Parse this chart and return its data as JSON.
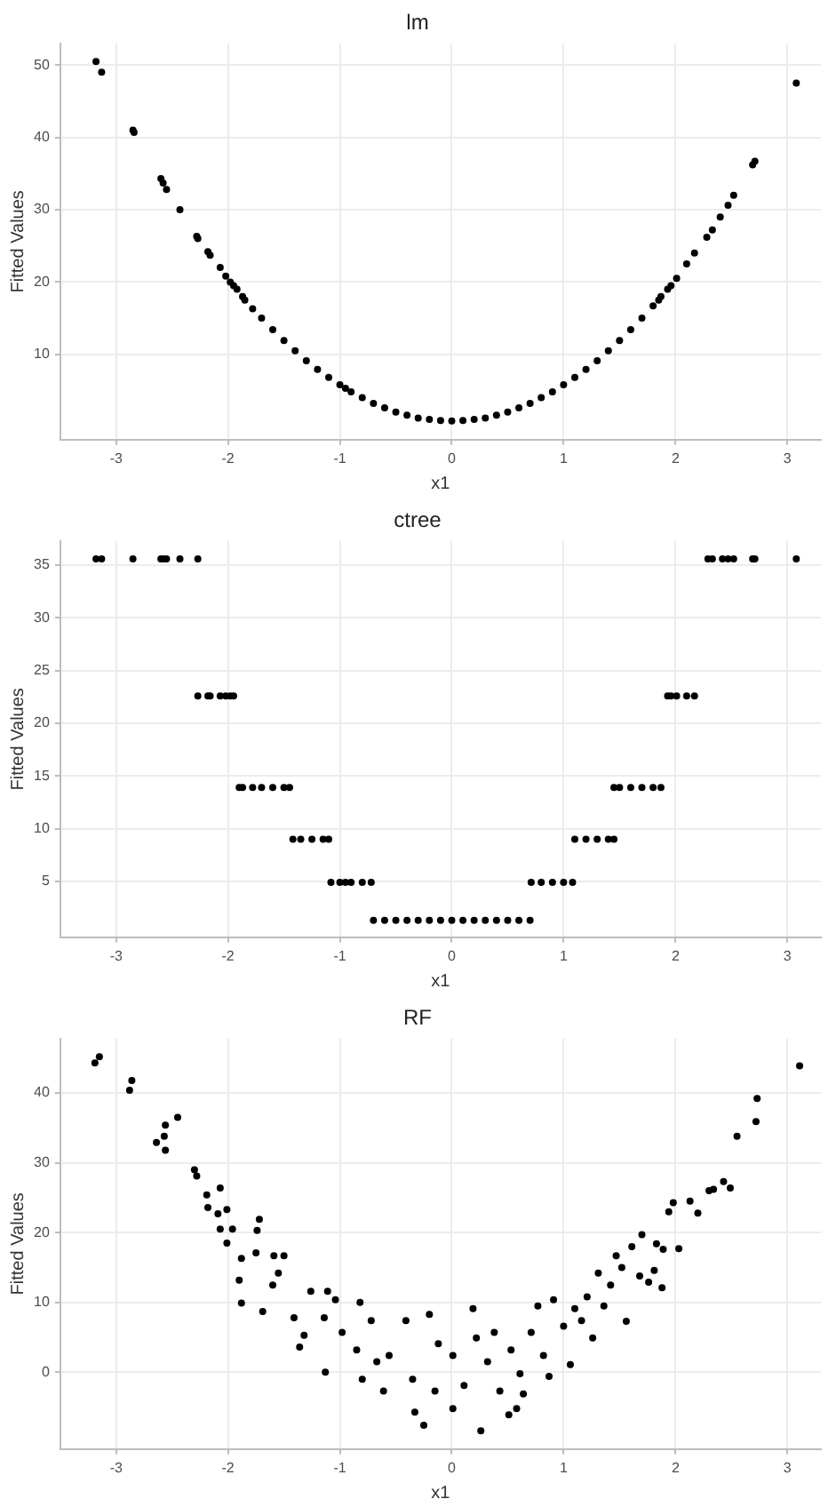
{
  "chart_data": [
    {
      "type": "scatter",
      "title": "lm",
      "xlabel": "x1",
      "ylabel": "Fitted Values",
      "xlim": [
        -3.5,
        3.3
      ],
      "ylim": [
        -1.8,
        53
      ],
      "xticks": [
        -3,
        -2,
        -1,
        0,
        1,
        2,
        3
      ],
      "yticks": [
        10,
        20,
        30,
        40,
        50
      ],
      "grid": true,
      "legend": false,
      "marker": "circle",
      "series": [
        {
          "color": "#000000",
          "x": [
            -3.18,
            -3.13,
            -2.85,
            -2.84,
            -2.6,
            -2.58,
            -2.55,
            -2.43,
            -2.28,
            -2.27,
            -2.18,
            -2.16,
            -2.07,
            -2.02,
            -1.98,
            -1.95,
            -1.92,
            -1.87,
            -1.85,
            -1.78,
            -1.7,
            -1.6,
            -1.5,
            -1.4,
            -1.3,
            -1.2,
            -1.1,
            -1.0,
            -0.95,
            -0.9,
            -0.8,
            -0.7,
            -0.6,
            -0.5,
            -0.4,
            -0.3,
            -0.2,
            -0.1,
            0,
            0.1,
            0.2,
            0.3,
            0.4,
            0.5,
            0.6,
            0.7,
            0.8,
            0.9,
            1.0,
            1.1,
            1.2,
            1.3,
            1.4,
            1.5,
            1.6,
            1.7,
            1.8,
            1.85,
            1.87,
            1.93,
            1.96,
            2.01,
            2.1,
            2.17,
            2.28,
            2.33,
            2.4,
            2.47,
            2.52,
            2.69,
            2.71,
            3.08
          ],
          "values": [
            50.5,
            49,
            41,
            40.7,
            34.3,
            33.7,
            32.8,
            30,
            26.3,
            26,
            24.2,
            23.7,
            22,
            20.8,
            20,
            19.5,
            19,
            18,
            17.5,
            16.3,
            15,
            13.4,
            11.9,
            10.5,
            9.1,
            7.9,
            6.8,
            5.8,
            5.3,
            4.8,
            4.0,
            3.2,
            2.6,
            2.0,
            1.6,
            1.2,
            1.0,
            0.85,
            0.8,
            0.85,
            1.0,
            1.2,
            1.6,
            2.0,
            2.6,
            3.2,
            4.0,
            4.8,
            5.8,
            6.8,
            7.9,
            9.1,
            10.5,
            11.9,
            13.4,
            15,
            16.7,
            17.5,
            18,
            19,
            19.5,
            20.5,
            22.5,
            24,
            26.2,
            27.2,
            29,
            30.6,
            32,
            36.2,
            36.7,
            47.5
          ]
        }
      ]
    },
    {
      "type": "scatter",
      "title": "ctree",
      "xlabel": "x1",
      "ylabel": "Fitted Values",
      "xlim": [
        -3.5,
        3.3
      ],
      "ylim": [
        -0.3,
        37.3
      ],
      "xticks": [
        -3,
        -2,
        -1,
        0,
        1,
        2,
        3
      ],
      "yticks": [
        5,
        10,
        15,
        20,
        25,
        30,
        35
      ],
      "grid": true,
      "legend": false,
      "marker": "circle",
      "series": [
        {
          "color": "#000000",
          "x": [
            -3.18,
            -3.13,
            -2.85,
            -2.6,
            -2.58,
            -2.55,
            -2.43,
            -2.27,
            2.29,
            2.33,
            2.42,
            2.47,
            2.52,
            2.69,
            2.71,
            3.08,
            -2.27,
            -2.18,
            -2.16,
            -2.07,
            -2.02,
            -1.98,
            -1.95,
            1.93,
            1.96,
            2.01,
            2.1,
            2.17,
            -1.9,
            -1.87,
            -1.78,
            -1.7,
            -1.6,
            -1.5,
            -1.45,
            1.45,
            1.5,
            1.6,
            1.7,
            1.8,
            1.87,
            -1.42,
            -1.35,
            -1.25,
            -1.15,
            -1.1,
            1.1,
            1.2,
            1.3,
            1.4,
            1.45,
            -1.08,
            -1.0,
            -0.95,
            -0.9,
            -0.8,
            -0.72,
            0.71,
            0.8,
            0.9,
            1.0,
            1.08,
            -0.7,
            -0.6,
            -0.5,
            -0.4,
            -0.3,
            -0.2,
            -0.1,
            0,
            0.1,
            0.2,
            0.3,
            0.4,
            0.5,
            0.6,
            0.7
          ],
          "values": [
            35.6,
            35.6,
            35.6,
            35.6,
            35.6,
            35.6,
            35.6,
            35.6,
            35.6,
            35.6,
            35.6,
            35.6,
            35.6,
            35.6,
            35.6,
            35.6,
            22.6,
            22.6,
            22.6,
            22.6,
            22.6,
            22.6,
            22.6,
            22.6,
            22.6,
            22.6,
            22.6,
            22.6,
            13.9,
            13.9,
            13.9,
            13.9,
            13.9,
            13.9,
            13.9,
            13.9,
            13.9,
            13.9,
            13.9,
            13.9,
            13.9,
            9.0,
            9.0,
            9.0,
            9.0,
            9.0,
            9.0,
            9.0,
            9.0,
            9.0,
            9.0,
            4.9,
            4.9,
            4.9,
            4.9,
            4.9,
            4.9,
            4.9,
            4.9,
            4.9,
            4.9,
            4.9,
            1.3,
            1.3,
            1.3,
            1.3,
            1.3,
            1.3,
            1.3,
            1.3,
            1.3,
            1.3,
            1.3,
            1.3,
            1.3,
            1.3,
            1.3
          ]
        }
      ]
    },
    {
      "type": "scatter",
      "title": "RF",
      "xlabel": "x1",
      "ylabel": "Fitted Values",
      "xlim": [
        -3.5,
        3.3
      ],
      "ylim": [
        -11,
        47.8
      ],
      "xticks": [
        -3,
        -2,
        -1,
        0,
        1,
        2,
        3
      ],
      "yticks": [
        0,
        10,
        20,
        30,
        40
      ],
      "grid": true,
      "legend": false,
      "marker": "circle",
      "series": [
        {
          "color": "#000000",
          "x": [
            -3.19,
            -3.15,
            -2.86,
            -2.88,
            -2.56,
            -2.45,
            -2.64,
            -2.56,
            -2.57,
            -2.3,
            -2.28,
            -2.19,
            -2.18,
            -2.07,
            -2.09,
            -2.01,
            -2.01,
            -1.96,
            -2.07,
            -1.88,
            -1.9,
            -1.88,
            -1.72,
            -1.74,
            -1.75,
            -1.69,
            -1.59,
            -1.6,
            -1.5,
            -1.55,
            -1.41,
            -1.36,
            -1.26,
            -1.32,
            -1.13,
            -1.11,
            -1.04,
            -1.14,
            -0.98,
            -0.82,
            -0.85,
            -0.72,
            -0.8,
            -0.61,
            -0.67,
            -0.56,
            -0.41,
            -0.35,
            -0.33,
            -0.25,
            -0.2,
            -0.15,
            -0.12,
            0.01,
            0.01,
            0.11,
            0.19,
            0.22,
            0.26,
            0.32,
            0.38,
            0.43,
            0.51,
            0.53,
            0.58,
            0.61,
            0.64,
            0.71,
            0.77,
            0.82,
            0.87,
            0.91,
            1.0,
            1.06,
            1.1,
            1.16,
            1.21,
            1.26,
            1.31,
            1.36,
            1.42,
            1.47,
            1.52,
            1.56,
            1.61,
            1.68,
            1.7,
            1.76,
            1.81,
            1.83,
            1.88,
            1.89,
            1.94,
            1.98,
            2.03,
            2.13,
            2.2,
            2.3,
            2.34,
            2.43,
            2.49,
            2.55,
            2.72,
            2.73,
            3.11
          ],
          "values": [
            44.3,
            45.2,
            41.8,
            40.4,
            35.4,
            36.5,
            32.9,
            31.8,
            33.8,
            29.0,
            28.1,
            25.4,
            23.6,
            26.4,
            22.7,
            23.3,
            18.5,
            20.5,
            20.5,
            16.3,
            13.2,
            9.9,
            21.9,
            20.3,
            17.1,
            8.7,
            16.7,
            12.5,
            16.7,
            14.2,
            7.8,
            3.6,
            11.6,
            5.3,
            0.0,
            11.6,
            10.4,
            7.8,
            5.7,
            10.0,
            3.2,
            7.4,
            -1.0,
            -2.7,
            1.5,
            2.4,
            7.4,
            -1.0,
            -5.7,
            -7.6,
            8.3,
            -2.7,
            4.1,
            -5.2,
            2.4,
            -1.9,
            9.1,
            4.9,
            -8.4,
            1.5,
            5.7,
            -2.7,
            -6.1,
            3.2,
            -5.2,
            -0.2,
            -3.1,
            5.7,
            9.5,
            2.4,
            -0.6,
            10.4,
            6.6,
            1.1,
            9.1,
            7.4,
            10.8,
            4.9,
            14.2,
            9.5,
            12.5,
            16.7,
            15.0,
            7.3,
            18.0,
            13.8,
            19.7,
            12.9,
            14.6,
            18.4,
            12.1,
            17.6,
            23.0,
            24.3,
            17.7,
            24.5,
            22.8,
            26.0,
            26.2,
            27.3,
            26.4,
            33.8,
            35.9,
            39.2,
            43.9
          ]
        }
      ]
    }
  ]
}
